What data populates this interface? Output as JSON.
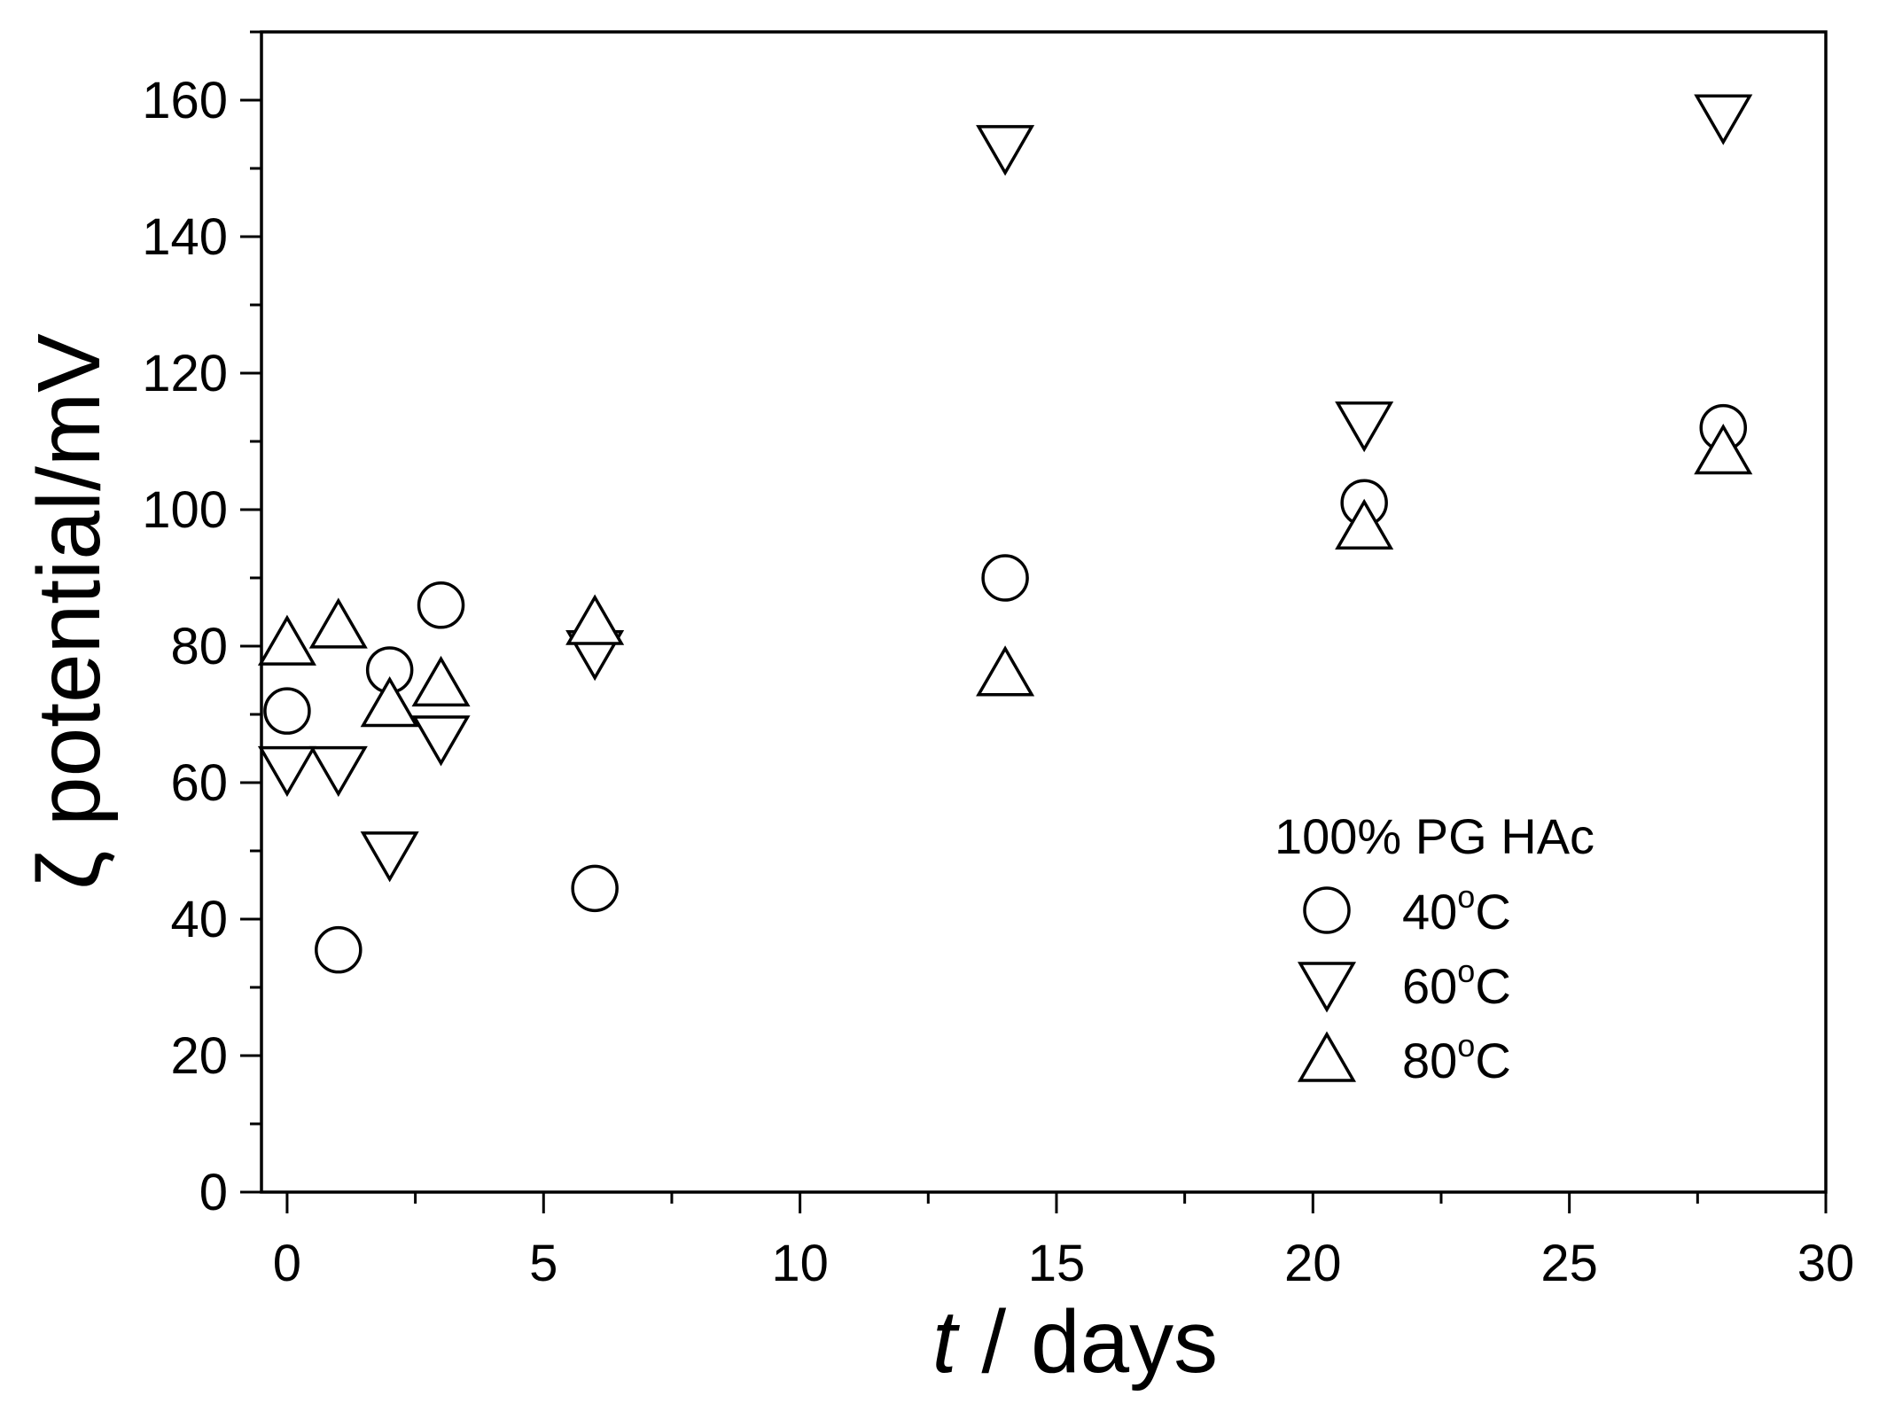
{
  "chart_data": {
    "type": "scatter",
    "title": "",
    "xlabel": {
      "italic_symbol": "t",
      "text": " / days"
    },
    "ylabel": {
      "symbol": "ζ",
      "text": " potential/mV"
    },
    "xlim": [
      -0.5,
      30
    ],
    "ylim": [
      0,
      170
    ],
    "x_ticks": [
      0,
      5,
      10,
      15,
      20,
      25,
      30
    ],
    "y_ticks": [
      0,
      20,
      40,
      60,
      80,
      100,
      120,
      140,
      160
    ],
    "grid": false,
    "legend": {
      "title": "100% PG HAc",
      "placement": "lower-right",
      "entries": [
        {
          "series": 0,
          "prefix": "40",
          "sup": "o",
          "suffix": "C"
        },
        {
          "series": 1,
          "prefix": "60",
          "sup": "o",
          "suffix": "C"
        },
        {
          "series": 2,
          "prefix": "80",
          "sup": "o",
          "suffix": "C"
        }
      ]
    },
    "series": [
      {
        "name": "40°C",
        "marker": "circle",
        "points": [
          [
            0,
            70.5
          ],
          [
            1,
            35.5
          ],
          [
            2,
            76.5
          ],
          [
            3,
            86
          ],
          [
            6,
            44.5
          ],
          [
            14,
            90
          ],
          [
            21,
            101
          ],
          [
            28,
            112
          ]
        ]
      },
      {
        "name": "60°C",
        "marker": "triangle-down",
        "points": [
          [
            0,
            62
          ],
          [
            1,
            62
          ],
          [
            2,
            49.5
          ],
          [
            3,
            66.5
          ],
          [
            6,
            79
          ],
          [
            14,
            153
          ],
          [
            21,
            112.5
          ],
          [
            28,
            157.5
          ]
        ]
      },
      {
        "name": "80°C",
        "marker": "triangle-up",
        "points": [
          [
            0,
            80.5
          ],
          [
            1,
            83
          ],
          [
            2,
            71.5
          ],
          [
            3,
            74.5
          ],
          [
            6,
            83.5
          ],
          [
            14,
            76
          ],
          [
            21,
            97.5
          ],
          [
            28,
            108.5
          ]
        ]
      }
    ],
    "colors": {
      "marker_stroke": "#000000",
      "marker_fill": "#ffffff",
      "axis": "#000000"
    }
  }
}
